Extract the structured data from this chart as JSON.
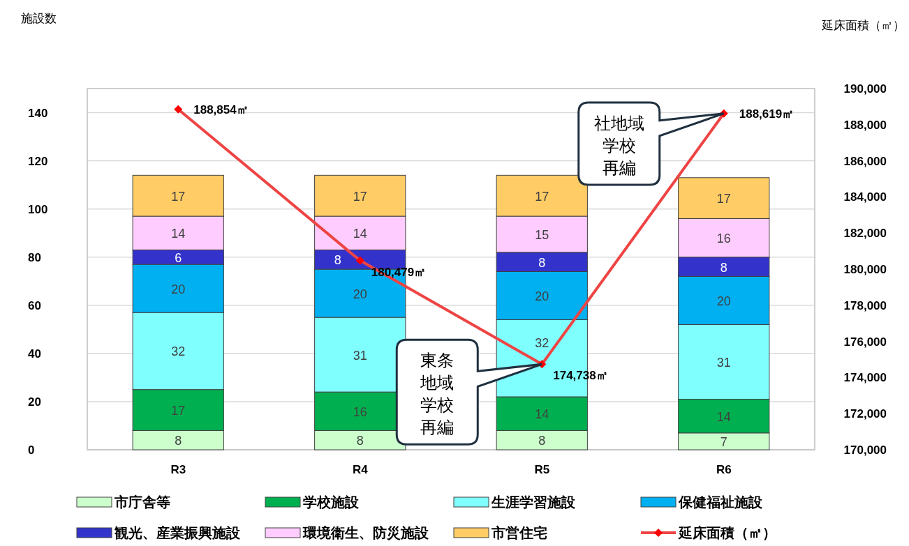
{
  "chart_data": {
    "type": "bar",
    "stacked": true,
    "categories": [
      "R3",
      "R4",
      "R5",
      "R6"
    ],
    "ylabel": "施設数",
    "y2label": "延床面積（㎡）",
    "ylim": [
      0,
      150
    ],
    "yticks": [
      0,
      20,
      40,
      60,
      80,
      100,
      120,
      140
    ],
    "y2lim": [
      170000,
      190000
    ],
    "y2ticks": [
      {
        "value": 170000,
        "label": "170,000"
      },
      {
        "value": 172000,
        "label": "172,000"
      },
      {
        "value": 174000,
        "label": "174,000"
      },
      {
        "value": 176000,
        "label": "176,000"
      },
      {
        "value": 178000,
        "label": "178,000"
      },
      {
        "value": 180000,
        "label": "180,000"
      },
      {
        "value": 182000,
        "label": "182,000"
      },
      {
        "value": 184000,
        "label": "184,000"
      },
      {
        "value": 186000,
        "label": "186,000"
      },
      {
        "value": 188000,
        "label": "188,000"
      },
      {
        "value": 190000,
        "label": "190,000"
      }
    ],
    "grid": "y",
    "legend": "bottom",
    "data_labels": true,
    "series": [
      {
        "name": "市庁舎等",
        "color": "#ccffcc",
        "values": [
          8,
          8,
          8,
          7
        ]
      },
      {
        "name": "学校施設",
        "color": "#00b050",
        "values": [
          17,
          16,
          14,
          14
        ]
      },
      {
        "name": "生涯学習施設",
        "color": "#80ffff",
        "values": [
          32,
          31,
          32,
          31
        ]
      },
      {
        "name": "保健福祉施設",
        "color": "#00b0f0",
        "values": [
          20,
          20,
          20,
          20
        ]
      },
      {
        "name": "観光、産業振興施設",
        "color": "#3333cc",
        "values": [
          6,
          8,
          8,
          8
        ]
      },
      {
        "name": "環境衛生、防災施設",
        "color": "#ffccff",
        "values": [
          14,
          14,
          15,
          16
        ]
      },
      {
        "name": "市営住宅",
        "color": "#ffcc66",
        "values": [
          17,
          17,
          17,
          17
        ]
      },
      {
        "name": "延床面積（㎡）",
        "type": "line",
        "axis": "y2",
        "color": "#ee4444",
        "marker": "diamond",
        "values": [
          188854,
          180479,
          174738,
          188619
        ],
        "value_labels": [
          "188,854㎡",
          "180,479㎡",
          "174,738㎡",
          "188,619㎡"
        ]
      }
    ],
    "annotations": [
      "東条地域学校再編",
      "社地域学校再編"
    ]
  }
}
